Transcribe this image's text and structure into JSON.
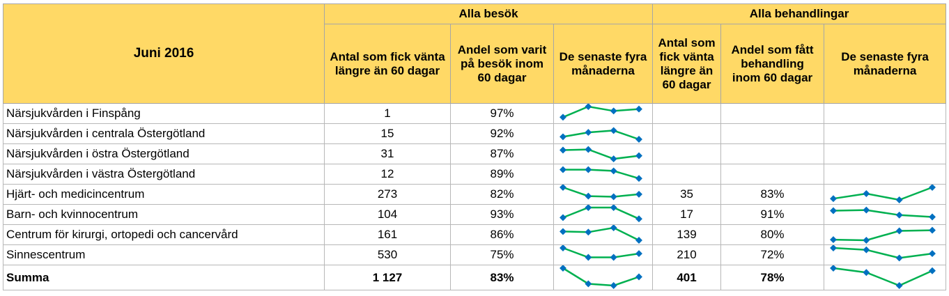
{
  "table": {
    "period": "Juni 2016",
    "group_visits": "Alla besök",
    "group_treatments": "Alla behandlingar",
    "col_visits_count": "Antal som fick vänta längre än 60 dagar",
    "col_visits_share": "Andel som varit på besök inom 60 dagar",
    "col_visits_trend": "De senaste fyra månaderna",
    "col_treat_count": "Antal som fick vänta längre än 60 dagar",
    "col_treat_share": "Andel som fått behandling inom 60 dagar",
    "col_treat_trend": "De senaste fyra månaderna",
    "rows": [
      {
        "name": "Närsjukvården i Finspång",
        "visits_count": "1",
        "visits_share": "97%",
        "treat_count": "",
        "treat_share": ""
      },
      {
        "name": "Närsjukvården i centrala Östergötland",
        "visits_count": "15",
        "visits_share": "92%",
        "treat_count": "",
        "treat_share": ""
      },
      {
        "name": "Närsjukvården i östra Östergötland",
        "visits_count": "31",
        "visits_share": "87%",
        "treat_count": "",
        "treat_share": ""
      },
      {
        "name": "Närsjukvården i västra Östergötland",
        "visits_count": "12",
        "visits_share": "89%",
        "treat_count": "",
        "treat_share": ""
      },
      {
        "name": "Hjärt- och medicincentrum",
        "visits_count": "273",
        "visits_share": "82%",
        "treat_count": "35",
        "treat_share": "83%"
      },
      {
        "name": "Barn- och kvinnocentrum",
        "visits_count": "104",
        "visits_share": "93%",
        "treat_count": "17",
        "treat_share": "91%"
      },
      {
        "name": "Centrum för kirurgi, ortopedi och cancervård",
        "visits_count": "161",
        "visits_share": "86%",
        "treat_count": "139",
        "treat_share": "80%"
      },
      {
        "name": "Sinnescentrum",
        "visits_count": "530",
        "visits_share": "75%",
        "treat_count": "210",
        "treat_share": "72%"
      },
      {
        "name": "Summa",
        "visits_count": "1 127",
        "visits_share": "83%",
        "treat_count": "401",
        "treat_share": "78%"
      }
    ]
  },
  "sparklines": {
    "line_color": "#00b050",
    "marker_color": "#0070c0",
    "visits": [
      [
        0.15,
        1.0,
        0.65,
        0.8
      ],
      [
        0.2,
        0.55,
        0.7,
        0.0
      ],
      [
        0.75,
        0.8,
        0.05,
        0.3
      ],
      [
        0.8,
        0.8,
        0.7,
        0.1
      ],
      [
        1.0,
        0.3,
        0.25,
        0.45
      ],
      [
        0.2,
        1.0,
        1.0,
        0.1
      ],
      [
        0.7,
        0.65,
        1.0,
        0.0
      ],
      [
        1.0,
        0.25,
        0.25,
        0.55
      ],
      [
        1.0,
        0.1,
        0.0,
        0.5
      ]
    ],
    "treatments": [
      null,
      null,
      null,
      null,
      [
        0.1,
        0.5,
        0.0,
        1.0
      ],
      [
        0.75,
        0.8,
        0.4,
        0.25
      ],
      [
        0.05,
        0.0,
        0.75,
        0.8
      ],
      [
        1.0,
        0.85,
        0.2,
        0.55
      ],
      [
        1.0,
        0.75,
        0.0,
        0.85
      ]
    ]
  }
}
